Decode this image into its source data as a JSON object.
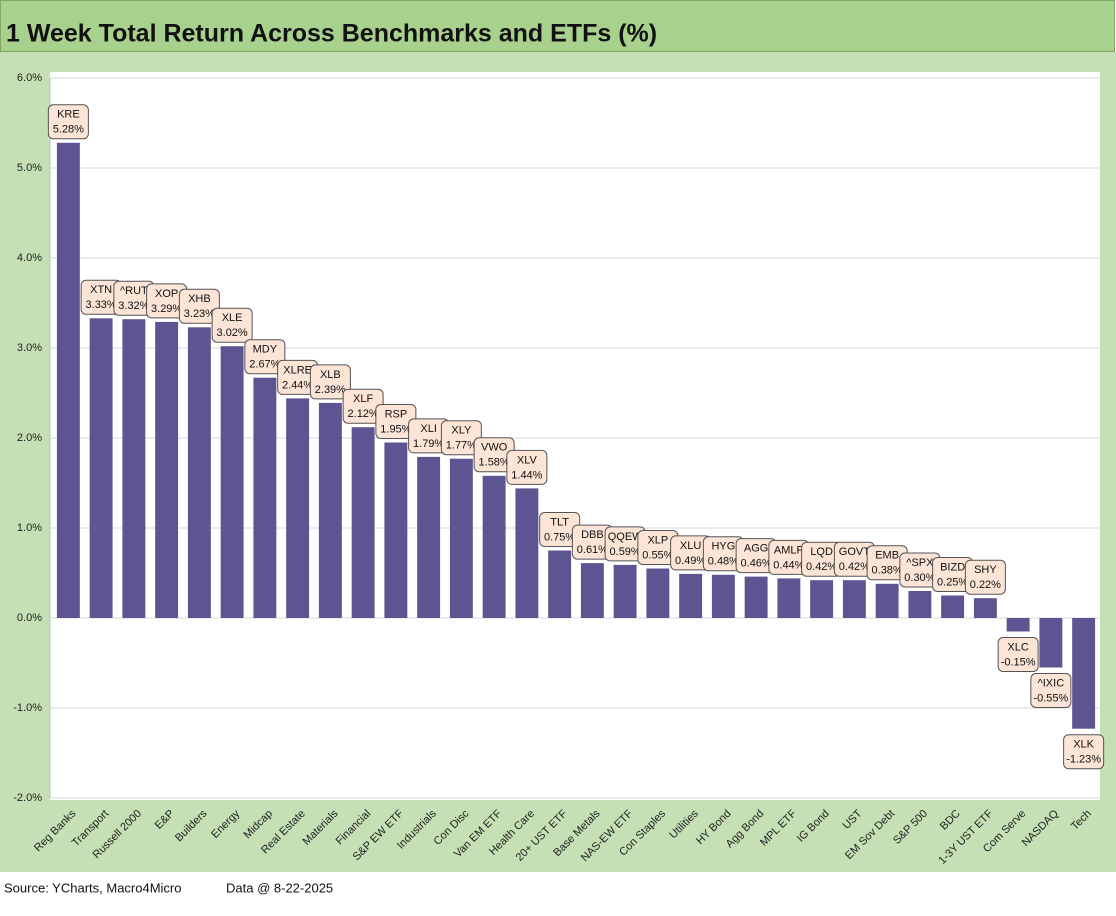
{
  "chart_data": {
    "type": "bar",
    "title": "1 Week Total Return Across Benchmarks and ETFs (%)",
    "categories": [
      "Reg Banks",
      "Transport",
      "Russell 2000",
      "E&P",
      "Builders",
      "Energy",
      "Midcap",
      "Real Estate",
      "Materials",
      "Financial",
      "S&P EW ETF",
      "Industrials",
      "Con Disc",
      "Van EM ETF",
      "Health Care",
      "20+ UST ETF",
      "Base Metals",
      "NAS-EW ETF",
      "Con Staples",
      "Utilities",
      "HY Bond",
      "Agg Bond",
      "MPL ETF",
      "IG Bond",
      "UST",
      "EM Sov Debt",
      "S&P 500",
      "BDC",
      "1-3Y UST ETF",
      "Com Serve",
      "NASDAQ",
      "Tech"
    ],
    "tickers": [
      "KRE",
      "XTN",
      "^RUT",
      "XOP",
      "XHB",
      "XLE",
      "MDY",
      "XLRE",
      "XLB",
      "XLF",
      "RSP",
      "XLI",
      "XLY",
      "VWO",
      "XLV",
      "TLT",
      "DBB",
      "QQEW",
      "XLP",
      "XLU",
      "HYG",
      "AGG",
      "AMLP",
      "LQD",
      "GOVT",
      "EMB",
      "^SPX",
      "BIZD",
      "SHY",
      "XLC",
      "^IXIC",
      "XLK"
    ],
    "values": [
      5.28,
      3.33,
      3.32,
      3.29,
      3.23,
      3.02,
      2.67,
      2.44,
      2.39,
      2.12,
      1.95,
      1.79,
      1.77,
      1.58,
      1.44,
      0.75,
      0.61,
      0.59,
      0.55,
      0.49,
      0.48,
      0.46,
      0.44,
      0.42,
      0.42,
      0.38,
      0.3,
      0.25,
      0.22,
      -0.15,
      -0.55,
      -1.23
    ],
    "value_labels": [
      "5.28%",
      "3.33%",
      "3.32%",
      "3.29%",
      "3.23%",
      "3.02%",
      "2.67%",
      "2.44%",
      "2.39%",
      "2.12%",
      "1.95%",
      "1.79%",
      "1.77%",
      "1.58%",
      "1.44%",
      "0.75%",
      "0.61%",
      "0.59%",
      "0.55%",
      "0.49%",
      "0.48%",
      "0.46%",
      "0.44%",
      "0.42%",
      "0.42%",
      "0.38%",
      "0.30%",
      "0.25%",
      "0.22%",
      "-0.15%",
      "-0.55%",
      "-1.23%"
    ],
    "color": "#5e5491",
    "ylim": [
      -2.0,
      6.0
    ],
    "yticks": [
      {
        "value": -2.0,
        "label": "-2.0%"
      },
      {
        "value": -1.0,
        "label": "-1.0%"
      },
      {
        "value": 0,
        "label": "0.0%"
      },
      {
        "value": 1.0,
        "label": "1.0%"
      },
      {
        "value": 2.0,
        "label": "2.0%"
      },
      {
        "value": 3.0,
        "label": "3.0%"
      },
      {
        "value": 4.0,
        "label": "4.0%"
      },
      {
        "value": 5.0,
        "label": "5.0%"
      },
      {
        "value": 6.0,
        "label": "6.0%"
      }
    ],
    "grid": true,
    "source": "Source: YCharts, Macro4Micro",
    "note": "Data @ 8-22-2025"
  }
}
